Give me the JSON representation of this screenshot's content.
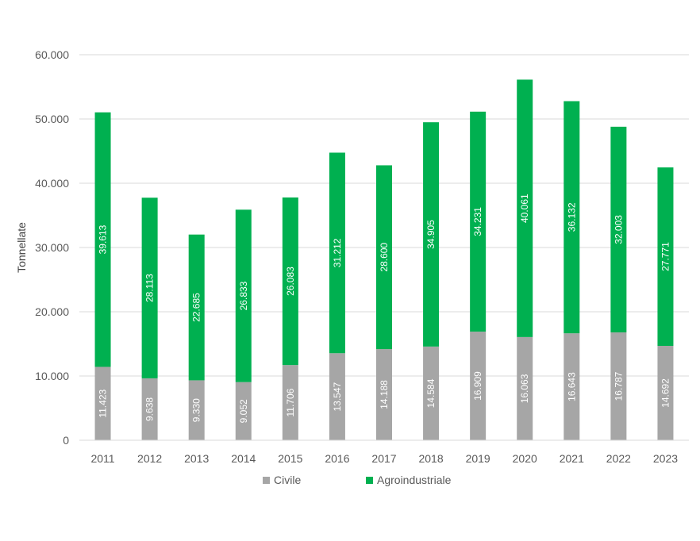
{
  "chart_data": {
    "type": "bar",
    "stacked": true,
    "categories": [
      "2011",
      "2012",
      "2013",
      "2014",
      "2015",
      "2016",
      "2017",
      "2018",
      "2019",
      "2020",
      "2021",
      "2022",
      "2023"
    ],
    "series": [
      {
        "name": "Civile",
        "color": "#a6a6a6",
        "values": [
          11423,
          9638,
          9330,
          9052,
          11706,
          13547,
          14188,
          14584,
          16909,
          16063,
          16643,
          16787,
          14692
        ],
        "labels": [
          "11.423",
          "9.638",
          "9.330",
          "9.052",
          "11.706",
          "13.547",
          "14.188",
          "14.584",
          "16.909",
          "16.063",
          "16.643",
          "16.787",
          "14.692"
        ]
      },
      {
        "name": "Agroindustriale",
        "color": "#00b050",
        "values": [
          39613,
          28113,
          22685,
          26833,
          26083,
          31212,
          28600,
          34905,
          34231,
          40061,
          36132,
          32003,
          27771
        ],
        "labels": [
          "39.613",
          "28.113",
          "22.685",
          "26.833",
          "26.083",
          "31.212",
          "28.600",
          "34.905",
          "34.231",
          "40.061",
          "36.132",
          "32.003",
          "27.771"
        ]
      }
    ],
    "ylabel": "Tonnellate",
    "xlabel": "",
    "ylim": [
      0,
      60000
    ],
    "yticks": [
      0,
      10000,
      20000,
      30000,
      40000,
      50000,
      60000
    ],
    "ytick_labels": [
      "0",
      "10.000",
      "20.000",
      "30.000",
      "40.000",
      "50.000",
      "60.000"
    ],
    "grid": true,
    "legend_position": "bottom"
  }
}
